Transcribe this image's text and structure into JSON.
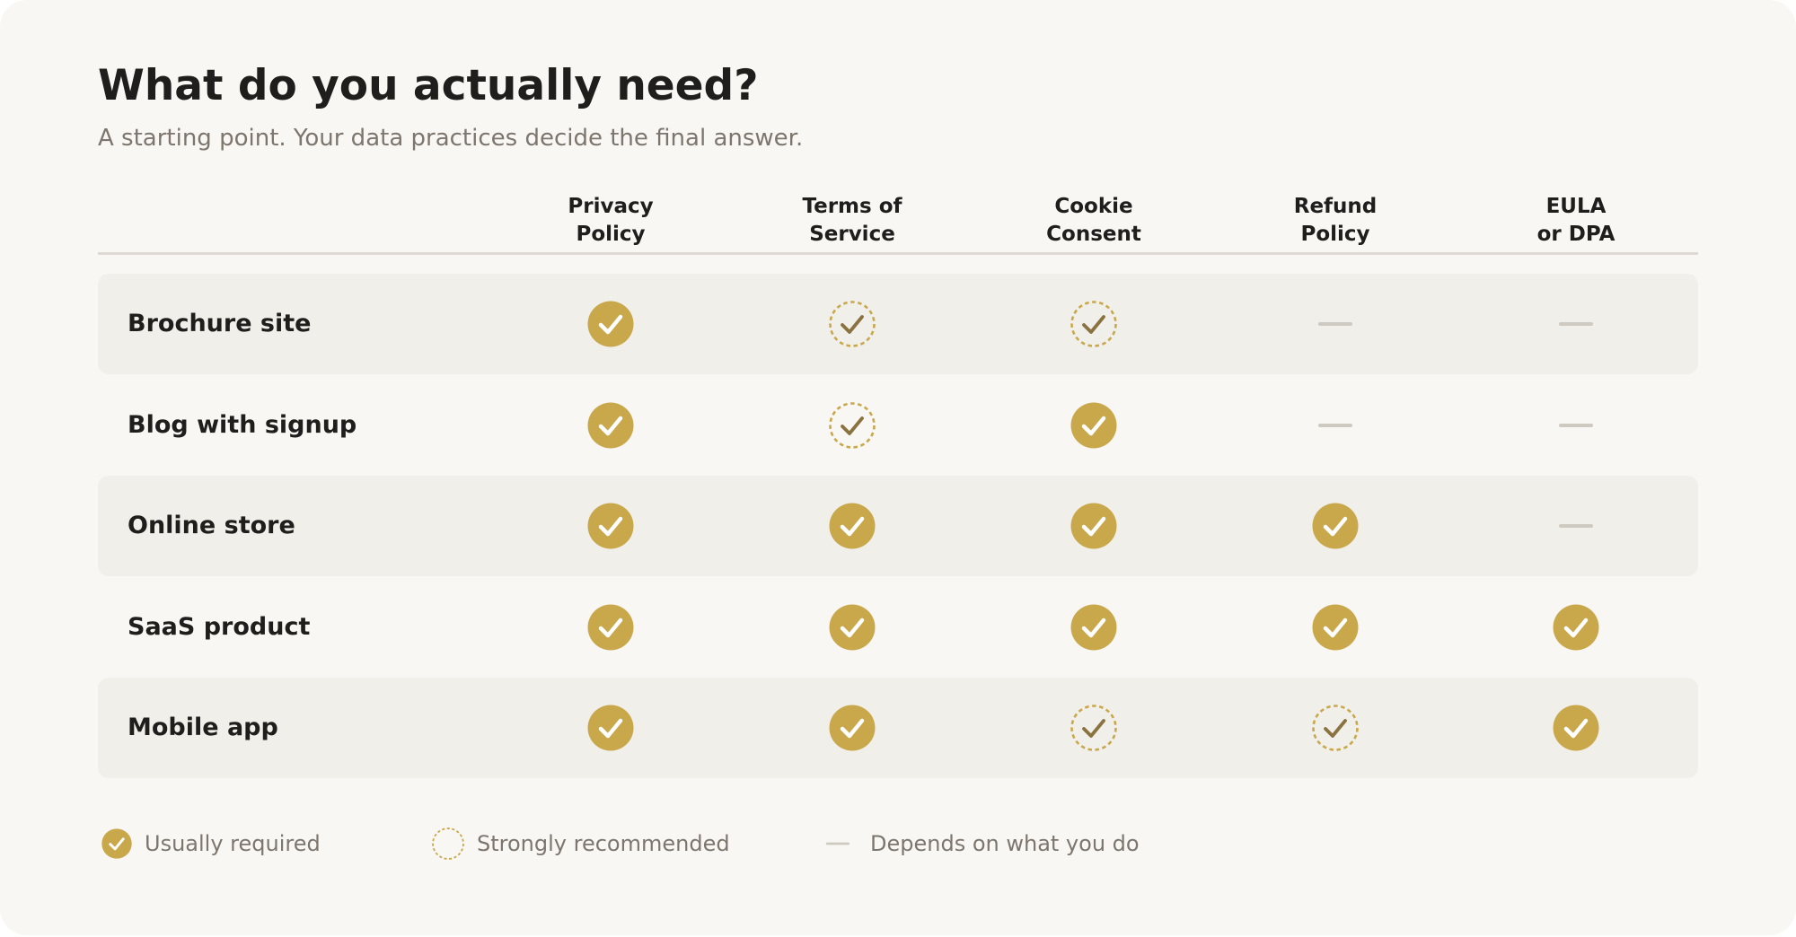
{
  "title": "What do you actually need?",
  "subtitle": "A starting point. Your data practices decide the final answer.",
  "columns": [
    {
      "line1": "Privacy",
      "line2": "Policy"
    },
    {
      "line1": "Terms of",
      "line2": "Service"
    },
    {
      "line1": "Cookie",
      "line2": "Consent"
    },
    {
      "line1": "Refund",
      "line2": "Policy"
    },
    {
      "line1": "EULA",
      "line2": "or DPA"
    }
  ],
  "rows": [
    {
      "label": "Brochure site",
      "statuses": [
        "required",
        "recommended",
        "recommended",
        "depends",
        "depends"
      ]
    },
    {
      "label": "Blog with signup",
      "statuses": [
        "required",
        "recommended",
        "required",
        "depends",
        "depends"
      ]
    },
    {
      "label": "Online store",
      "statuses": [
        "required",
        "required",
        "required",
        "required",
        "depends"
      ]
    },
    {
      "label": "SaaS product",
      "statuses": [
        "required",
        "required",
        "required",
        "required",
        "required"
      ]
    },
    {
      "label": "Mobile app",
      "statuses": [
        "required",
        "required",
        "recommended",
        "recommended",
        "required"
      ]
    }
  ],
  "legend": {
    "required": "Usually required",
    "recommended": "Strongly recommended",
    "depends": "Depends on what you do"
  },
  "colors": {
    "gold": "#c9a84c",
    "check_dark": "#8a7340",
    "dash": "#cfcac1",
    "row_shade": "#f1efea",
    "card_bg": "#f9f7f3"
  }
}
